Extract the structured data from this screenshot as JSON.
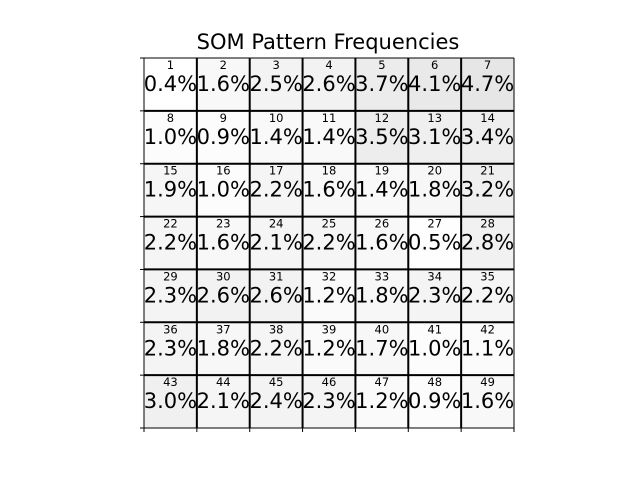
{
  "chart_data": {
    "type": "heatmap",
    "title": "SOM Pattern Frequencies",
    "rows": 7,
    "cols": 7,
    "unit": "%",
    "cells": [
      {
        "id": "1",
        "value": 0.4,
        "label": "0.4%"
      },
      {
        "id": "2",
        "value": 1.6,
        "label": "1.6%"
      },
      {
        "id": "3",
        "value": 2.5,
        "label": "2.5%"
      },
      {
        "id": "4",
        "value": 2.6,
        "label": "2.6%"
      },
      {
        "id": "5",
        "value": 3.7,
        "label": "3.7%"
      },
      {
        "id": "6",
        "value": 4.1,
        "label": "4.1%"
      },
      {
        "id": "7",
        "value": 4.7,
        "label": "4.7%"
      },
      {
        "id": "8",
        "value": 1.0,
        "label": "1.0%"
      },
      {
        "id": "9",
        "value": 0.9,
        "label": "0.9%"
      },
      {
        "id": "10",
        "value": 1.4,
        "label": "1.4%"
      },
      {
        "id": "11",
        "value": 1.4,
        "label": "1.4%"
      },
      {
        "id": "12",
        "value": 3.5,
        "label": "3.5%"
      },
      {
        "id": "13",
        "value": 3.1,
        "label": "3.1%"
      },
      {
        "id": "14",
        "value": 3.4,
        "label": "3.4%"
      },
      {
        "id": "15",
        "value": 1.9,
        "label": "1.9%"
      },
      {
        "id": "16",
        "value": 1.0,
        "label": "1.0%"
      },
      {
        "id": "17",
        "value": 2.2,
        "label": "2.2%"
      },
      {
        "id": "18",
        "value": 1.6,
        "label": "1.6%"
      },
      {
        "id": "19",
        "value": 1.4,
        "label": "1.4%"
      },
      {
        "id": "20",
        "value": 1.8,
        "label": "1.8%"
      },
      {
        "id": "21",
        "value": 3.2,
        "label": "3.2%"
      },
      {
        "id": "22",
        "value": 2.2,
        "label": "2.2%"
      },
      {
        "id": "23",
        "value": 1.6,
        "label": "1.6%"
      },
      {
        "id": "24",
        "value": 2.1,
        "label": "2.1%"
      },
      {
        "id": "25",
        "value": 2.2,
        "label": "2.2%"
      },
      {
        "id": "26",
        "value": 1.6,
        "label": "1.6%"
      },
      {
        "id": "27",
        "value": 0.5,
        "label": "0.5%"
      },
      {
        "id": "28",
        "value": 2.8,
        "label": "2.8%"
      },
      {
        "id": "29",
        "value": 2.3,
        "label": "2.3%"
      },
      {
        "id": "30",
        "value": 2.6,
        "label": "2.6%"
      },
      {
        "id": "31",
        "value": 2.6,
        "label": "2.6%"
      },
      {
        "id": "32",
        "value": 1.2,
        "label": "1.2%"
      },
      {
        "id": "33",
        "value": 1.8,
        "label": "1.8%"
      },
      {
        "id": "34",
        "value": 2.3,
        "label": "2.3%"
      },
      {
        "id": "35",
        "value": 2.2,
        "label": "2.2%"
      },
      {
        "id": "36",
        "value": 2.3,
        "label": "2.3%"
      },
      {
        "id": "37",
        "value": 1.8,
        "label": "1.8%"
      },
      {
        "id": "38",
        "value": 2.2,
        "label": "2.2%"
      },
      {
        "id": "39",
        "value": 1.2,
        "label": "1.2%"
      },
      {
        "id": "40",
        "value": 1.7,
        "label": "1.7%"
      },
      {
        "id": "41",
        "value": 1.0,
        "label": "1.0%"
      },
      {
        "id": "42",
        "value": 1.1,
        "label": "1.1%"
      },
      {
        "id": "43",
        "value": 3.0,
        "label": "3.0%"
      },
      {
        "id": "44",
        "value": 2.1,
        "label": "2.1%"
      },
      {
        "id": "45",
        "value": 2.4,
        "label": "2.4%"
      },
      {
        "id": "46",
        "value": 2.3,
        "label": "2.3%"
      },
      {
        "id": "47",
        "value": 1.2,
        "label": "1.2%"
      },
      {
        "id": "48",
        "value": 0.9,
        "label": "0.9%"
      },
      {
        "id": "49",
        "value": 1.6,
        "label": "1.6%"
      }
    ],
    "color_scale": {
      "low": "#ffffff",
      "high": "#e6e6e6"
    },
    "grid_color": "#000000",
    "grid": true,
    "legend": "none"
  }
}
